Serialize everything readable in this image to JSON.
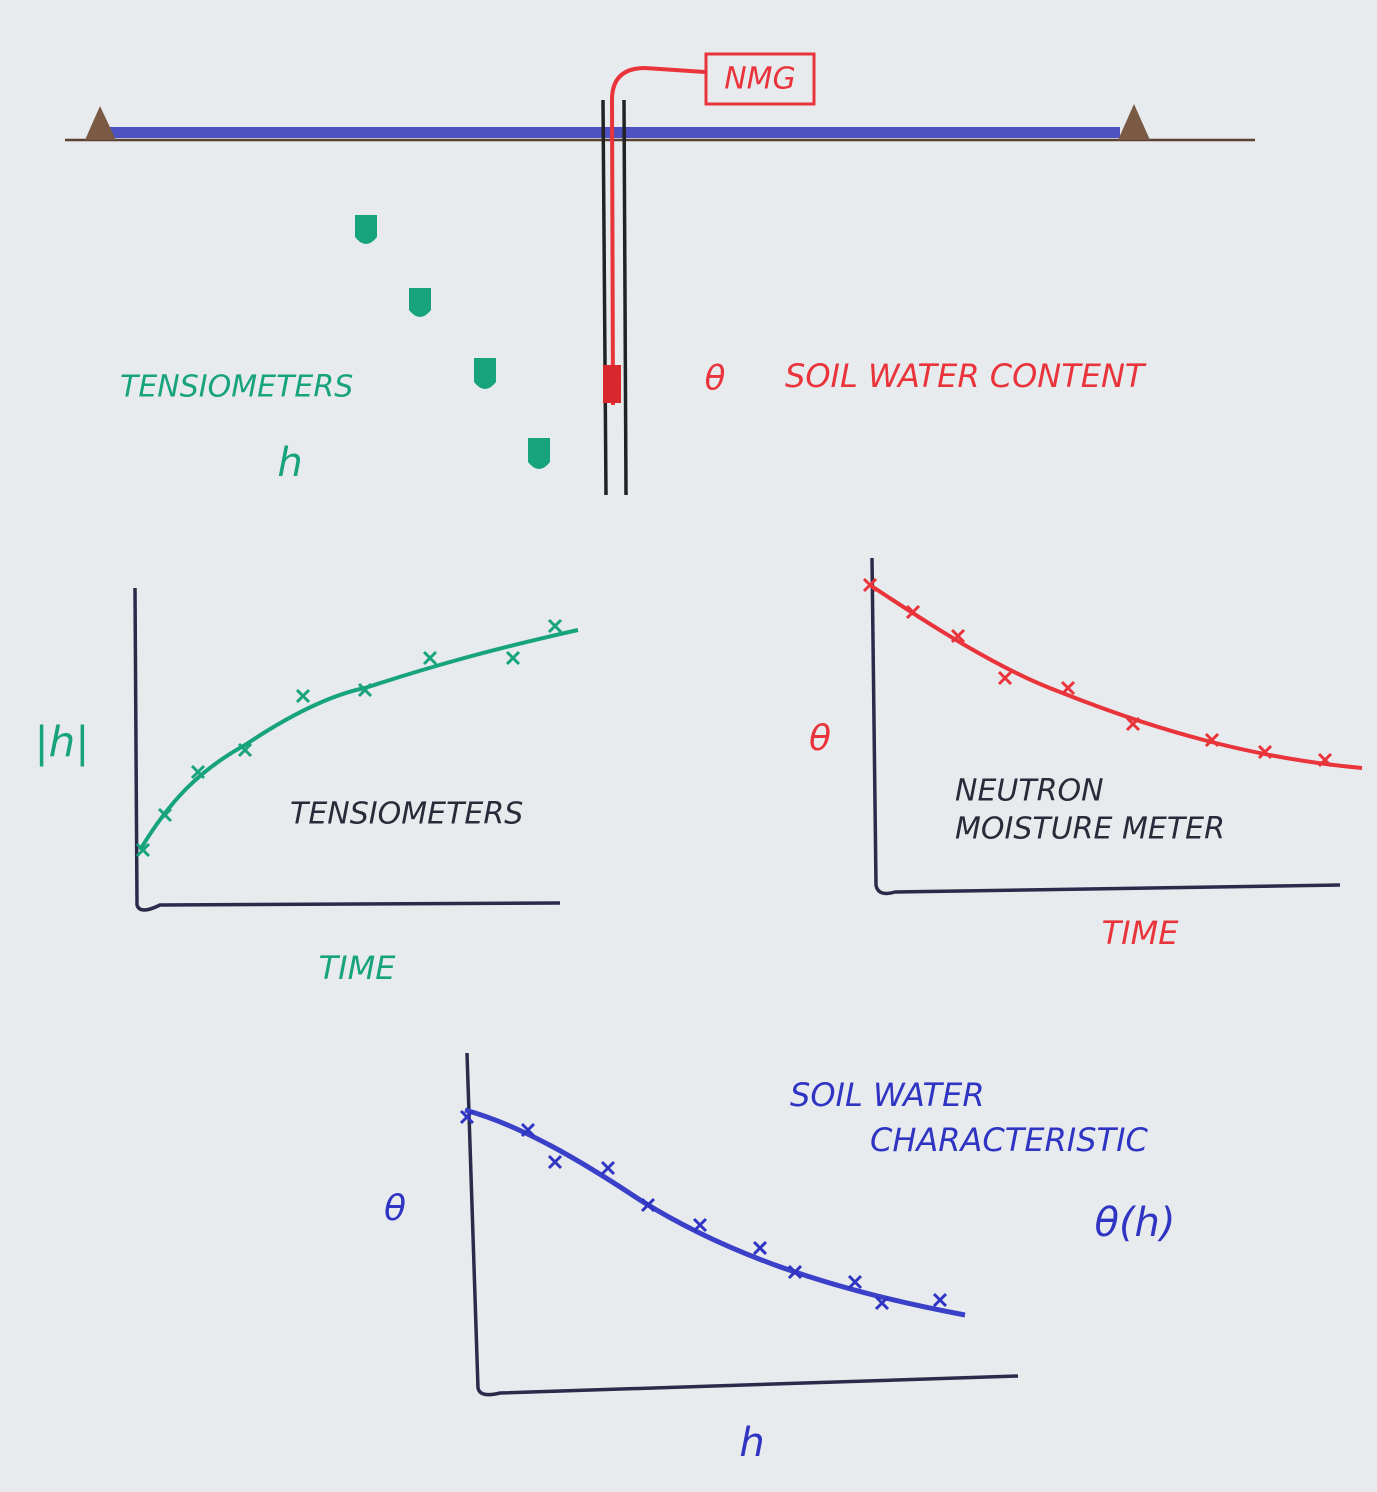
{
  "top_diagram": {
    "nmg_label": "NMG",
    "tensiometers_label": "TENSIOMETERS",
    "h_symbol": "h",
    "theta_symbol": "θ",
    "soil_water_content_label": "SOIL WATER CONTENT"
  },
  "tensiometer_plot": {
    "y_label": "|h|",
    "annotation": "TENSIOMETERS",
    "x_label": "TIME"
  },
  "neutron_plot": {
    "y_label": "θ",
    "annotation": [
      "NEUTRON",
      "MOISTURE METER"
    ],
    "x_label": "TIME"
  },
  "characteristic_plot": {
    "y_label": "θ",
    "annotation": [
      "SOIL WATER",
      "CHARACTERISTIC"
    ],
    "function_label": "θ(h)",
    "x_label": "h"
  }
}
